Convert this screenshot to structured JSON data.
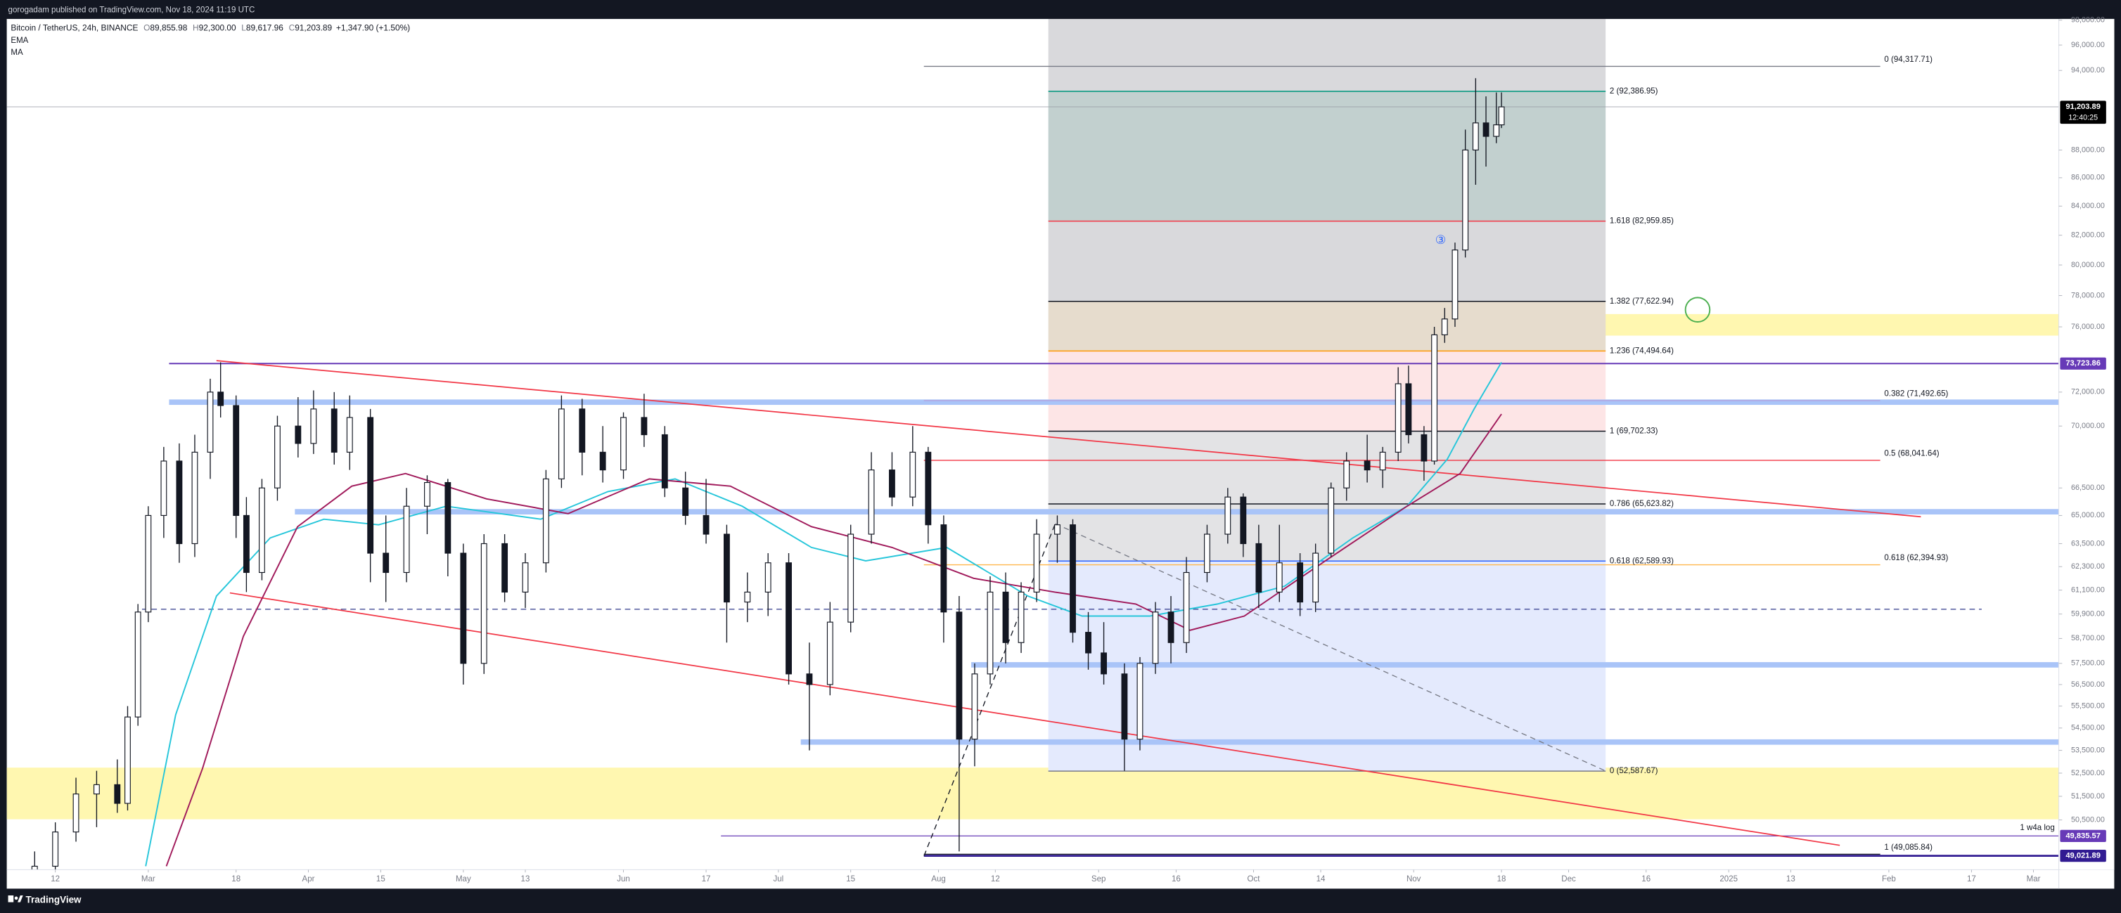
{
  "chart_data": {
    "type": "candlestick",
    "publisher": "gorogadam published on TradingView.com, Nov 18, 2024 11:19 UTC",
    "brand": "TradingView",
    "title": "Bitcoin / TetherUS, 24h, BINANCE",
    "ohlc_header": [
      {
        "key": "O",
        "value": 89855.98,
        "label": "89,855.98"
      },
      {
        "key": "H",
        "value": 92300,
        "label": "92,300.00"
      },
      {
        "key": "L",
        "value": 89617.96,
        "label": "89,617.96"
      },
      {
        "key": "C",
        "value": 91203.89,
        "label": "91,203.89"
      }
    ],
    "change": {
      "value": 1347.9,
      "label": "+1,347.90 (+1.50%)"
    },
    "scale_note": "1 w4a log",
    "wave_label": "③",
    "log_y": true,
    "up_color": "#ffffff",
    "down_color": "#131722",
    "wick_color": "#131722",
    "x": [
      39,
      43,
      47,
      51,
      55,
      57,
      59,
      61,
      64,
      67,
      70,
      73,
      75,
      78,
      80,
      83,
      86,
      90,
      93,
      97,
      100,
      104,
      107,
      111,
      115,
      119,
      122,
      126,
      130,
      134,
      138,
      141,
      145,
      149,
      153,
      157,
      161,
      165,
      169,
      173,
      177,
      181,
      185,
      189,
      193,
      197,
      201,
      205,
      209,
      212,
      215,
      218,
      221,
      224,
      227,
      230,
      233,
      237,
      240,
      243,
      246,
      250,
      253,
      256,
      259,
      262,
      266,
      270,
      273,
      276,
      280,
      284,
      287,
      290,
      293,
      297,
      300,
      303,
      305,
      308,
      310,
      312,
      314,
      316,
      318,
      320,
      322,
      323
    ],
    "open": [
      47500,
      48600,
      50000,
      51600,
      52000,
      51200,
      55000,
      60000,
      65000,
      68000,
      63500,
      68500,
      72000,
      71200,
      65000,
      62000,
      66500,
      70000,
      69000,
      71000,
      68500,
      70500,
      63000,
      62000,
      65500,
      66800,
      63000,
      57500,
      63500,
      61000,
      62500,
      67000,
      71000,
      68500,
      67500,
      70500,
      69500,
      66500,
      65000,
      64000,
      60500,
      61000,
      62500,
      57000,
      56500,
      59500,
      64000,
      67500,
      66000,
      68500,
      64500,
      60000,
      54000,
      57000,
      61000,
      58500,
      61000,
      64000,
      64500,
      59000,
      58000,
      57000,
      54000,
      57500,
      60000,
      58500,
      62000,
      64000,
      66000,
      63500,
      61000,
      62500,
      60500,
      63000,
      66500,
      68000,
      67500,
      68500,
      72500,
      69500,
      68000,
      75500,
      76500,
      81000,
      88000,
      90000,
      89000,
      89855.98
    ],
    "high": [
      49200,
      50400,
      52300,
      52600,
      53100,
      55500,
      60400,
      65500,
      68800,
      69000,
      69500,
      72800,
      73800,
      71800,
      66000,
      67000,
      70600,
      71700,
      72100,
      72000,
      71800,
      71000,
      65000,
      66500,
      67200,
      67000,
      63500,
      64000,
      64000,
      63000,
      67500,
      71800,
      71600,
      70000,
      70800,
      71900,
      70000,
      67400,
      67000,
      64500,
      62000,
      63000,
      63000,
      58500,
      60500,
      64500,
      68500,
      68500,
      70000,
      68800,
      65000,
      60800,
      57500,
      61800,
      62000,
      61500,
      64800,
      65000,
      64800,
      60000,
      59500,
      57500,
      57800,
      60500,
      60800,
      62800,
      64500,
      66500,
      66200,
      64500,
      64500,
      63000,
      63500,
      66800,
      68500,
      69500,
      68800,
      73500,
      73600,
      70000,
      76000,
      77200,
      81500,
      89500,
      93400,
      92000,
      92300,
      92300
    ],
    "low": [
      47000,
      48200,
      49600,
      50200,
      50800,
      50900,
      54600,
      59500,
      63800,
      62500,
      62800,
      67000,
      70500,
      63800,
      61000,
      61600,
      65800,
      68200,
      68400,
      67800,
      67500,
      61500,
      60500,
      61500,
      64000,
      61800,
      56500,
      57000,
      60500,
      60200,
      62000,
      66500,
      67200,
      66800,
      67000,
      68800,
      66000,
      64500,
      63500,
      58500,
      59500,
      59800,
      56500,
      53500,
      56000,
      59000,
      63500,
      65500,
      65500,
      63500,
      58500,
      49200,
      52800,
      56500,
      57500,
      58000,
      60500,
      62500,
      58500,
      57200,
      56500,
      52600,
      53500,
      57000,
      57500,
      58000,
      61500,
      63500,
      62800,
      60200,
      60500,
      59800,
      60000,
      62800,
      65800,
      66800,
      66500,
      68000,
      69000,
      66900,
      67800,
      75000,
      76000,
      80500,
      85500,
      86800,
      88500,
      89617.96
    ],
    "close": [
      48600,
      50000,
      51600,
      52000,
      51200,
      55000,
      60000,
      65000,
      68000,
      63500,
      68500,
      72000,
      71200,
      65000,
      62000,
      66500,
      70000,
      69000,
      71000,
      68500,
      70500,
      63000,
      62000,
      65500,
      66800,
      63000,
      57500,
      63500,
      61000,
      62500,
      67000,
      71000,
      68500,
      67500,
      70500,
      69500,
      66500,
      65000,
      64000,
      60500,
      61000,
      62500,
      57000,
      56500,
      59500,
      64000,
      67500,
      66000,
      68500,
      64500,
      60000,
      54000,
      57000,
      61000,
      58500,
      61000,
      64000,
      64500,
      59000,
      58000,
      57000,
      54000,
      57500,
      60000,
      58500,
      62000,
      64000,
      66000,
      63500,
      61000,
      62500,
      60500,
      63000,
      66500,
      68000,
      67500,
      68500,
      72500,
      69500,
      68000,
      75500,
      76500,
      81000,
      88000,
      90000,
      89000,
      89855.98,
      91203.89
    ],
    "lines": [
      {
        "name": "EMA",
        "color": "#26c6da",
        "x": [
          60.5,
          66.3,
          74.2,
          84.6,
          95,
          105.6,
          118.7,
          137,
          150,
          163,
          176,
          189.4,
          199.9,
          215.6,
          231.3,
          241.8,
          254.9,
          268,
          281,
          294.2,
          304.7,
          312.5,
          317.7,
          323
        ],
        "values": [
          48600,
          55100,
          60800,
          63800,
          64800,
          64500,
          65500,
          64800,
          66300,
          67000,
          65500,
          63300,
          62600,
          63300,
          60800,
          59800,
          59800,
          60400,
          61300,
          63800,
          65500,
          68100,
          71000,
          73800
        ]
      },
      {
        "name": "MA",
        "color": "#a0195a",
        "x": [
          64.5,
          71.5,
          79.4,
          89.9,
          100.4,
          110.8,
          126.5,
          142.3,
          158,
          173.7,
          189.4,
          205,
          220.8,
          236.5,
          252.2,
          262.7,
          273.2,
          288.9,
          304.7,
          315,
          323
        ],
        "values": [
          48600,
          52700,
          58800,
          64400,
          66600,
          67300,
          65900,
          65100,
          67000,
          66600,
          64400,
          63300,
          61700,
          61000,
          60400,
          59100,
          59800,
          62600,
          65500,
          67300,
          70700
        ]
      }
    ],
    "zones": [
      {
        "low": 50530,
        "high": 52740,
        "color": "#fff7b0"
      },
      {
        "low": 75450,
        "high": 76810,
        "color": "#fff7b0"
      }
    ],
    "levels": [
      {
        "value": 71400,
        "color": "#a9c4f8",
        "style": "band"
      },
      {
        "value": 65200,
        "color": "#a9c4f8",
        "style": "band"
      },
      {
        "value": 57430,
        "color": "#a9c4f8",
        "style": "band"
      },
      {
        "value": 53870,
        "color": "#a9c4f8",
        "style": "band"
      },
      {
        "value": 60140,
        "color": "#1a237e",
        "style": "dashed"
      }
    ],
    "trendlines": [
      {
        "color": "#f23645",
        "dash": false,
        "x": [
          74.2,
          404.2
        ],
        "values": [
          73900,
          64930
        ]
      },
      {
        "color": "#f23645",
        "dash": false,
        "x": [
          76.8,
          388.5
        ],
        "values": [
          60960,
          49450
        ]
      },
      {
        "color": "#131722",
        "dash": true,
        "x": [
          211.2,
          236.6
        ],
        "values": [
          49020,
          64560
        ]
      },
      {
        "color": "#787b86",
        "dash": true,
        "x": [
          236.6,
          343.2
        ],
        "values": [
          64560,
          52590
        ]
      }
    ],
    "fib_extension": {
      "color": "#d9d9dc",
      "levels": [
        {
          "label": "2 (92,386.95)",
          "value": 92386.95,
          "color": "#089981",
          "fill": "#c2d0cf"
        },
        {
          "label": "1.618 (82,959.85)",
          "value": 82959.85,
          "color": "#f23645",
          "fill": "#d9d9dc"
        },
        {
          "label": "1.382 (77,622.94)",
          "value": 77622.94,
          "color": "#131722",
          "fill": "#e6dccd"
        },
        {
          "label": "1.236 (74,494.64)",
          "value": 74494.64,
          "color": "#ff9800",
          "fill": "#fde5e6"
        },
        {
          "label": "1 (69,702.33)",
          "value": 69702.33,
          "color": "#131722",
          "fill": "#e3e3e5"
        },
        {
          "label": "0.786 (65,623.82)",
          "value": 65623.82,
          "color": "#131722",
          "fill": "#e3e3e5"
        },
        {
          "label": "0.618 (62,589.93)",
          "value": 62589.93,
          "color": "#2962ff",
          "fill": "#e4eafd"
        },
        {
          "label": "0 (52,587.67)",
          "value": 52587.67,
          "color": "#787b86"
        }
      ]
    },
    "fib_retracement": [
      {
        "label": "0 (94,317.71)",
        "value": 94317.71,
        "color": "#787b86"
      },
      {
        "label": "0.382 (71,492.65)",
        "value": 71492.65,
        "color": "#b39ddb"
      },
      {
        "label": "0.5 (68,041.64)",
        "value": 68041.64,
        "color": "#f23645"
      },
      {
        "label": "0.618 (62,394.93)",
        "value": 62394.93,
        "color": "#ffb74d"
      },
      {
        "label": "1 (49,085.84)",
        "value": 49085.84,
        "color": "#131722"
      }
    ],
    "price_labels": [
      {
        "value": 91203.89,
        "label": "91,203.89",
        "color": "#000000",
        "countdown": "12:40:25"
      },
      {
        "value": 73723.86,
        "label": "73,723.86",
        "color": "#673ab7"
      },
      {
        "value": 49835.57,
        "label": "49,835.57",
        "color": "#673ab7"
      },
      {
        "value": 49021.89,
        "label": "49,021.89",
        "color": "#311b92"
      }
    ],
    "xlim": [
      33.6,
      430.9
    ],
    "xticks": [
      {
        "value": 43,
        "label": "12"
      },
      {
        "value": 61,
        "label": "Mar"
      },
      {
        "value": 78,
        "label": "18"
      },
      {
        "value": 92,
        "label": "Apr"
      },
      {
        "value": 106,
        "label": "15"
      },
      {
        "value": 122,
        "label": "May"
      },
      {
        "value": 134,
        "label": "13"
      },
      {
        "value": 153,
        "label": "Jun"
      },
      {
        "value": 169,
        "label": "17"
      },
      {
        "value": 183,
        "label": "Jul"
      },
      {
        "value": 197,
        "label": "15"
      },
      {
        "value": 214,
        "label": "Aug"
      },
      {
        "value": 225,
        "label": "12"
      },
      {
        "value": 245,
        "label": "Sep"
      },
      {
        "value": 260,
        "label": "16"
      },
      {
        "value": 275,
        "label": "Oct"
      },
      {
        "value": 288,
        "label": "14"
      },
      {
        "value": 306,
        "label": "Nov"
      },
      {
        "value": 323,
        "label": "18"
      },
      {
        "value": 336,
        "label": "Dec"
      },
      {
        "value": 351,
        "label": "16"
      },
      {
        "value": 367,
        "label": "2025"
      },
      {
        "value": 379,
        "label": "13"
      },
      {
        "value": 398,
        "label": "Feb"
      },
      {
        "value": 414,
        "label": "17"
      },
      {
        "value": 426,
        "label": "Mar"
      }
    ],
    "ylim": [
      48460,
      98100
    ],
    "yticks": [
      {
        "value": 98000,
        "label": "98,000.00"
      },
      {
        "value": 96000,
        "label": "96,000.00"
      },
      {
        "value": 94000,
        "label": "94,000.00"
      },
      {
        "value": 88000,
        "label": "88,000.00"
      },
      {
        "value": 86000,
        "label": "86,000.00"
      },
      {
        "value": 84000,
        "label": "84,000.00"
      },
      {
        "value": 82000,
        "label": "82,000.00"
      },
      {
        "value": 80000,
        "label": "80,000.00"
      },
      {
        "value": 78000,
        "label": "78,000.00"
      },
      {
        "value": 76000,
        "label": "76,000.00"
      },
      {
        "value": 72000,
        "label": "72,000.00"
      },
      {
        "value": 70000,
        "label": "70,000.00"
      },
      {
        "value": 66500,
        "label": "66,500.00"
      },
      {
        "value": 65000,
        "label": "65,000.00"
      },
      {
        "value": 63500,
        "label": "63,500.00"
      },
      {
        "value": 62300,
        "label": "62,300.00"
      },
      {
        "value": 61100,
        "label": "61,100.00"
      },
      {
        "value": 59900,
        "label": "59,900.00"
      },
      {
        "value": 58700,
        "label": "58,700.00"
      },
      {
        "value": 57500,
        "label": "57,500.00"
      },
      {
        "value": 56500,
        "label": "56,500.00"
      },
      {
        "value": 55500,
        "label": "55,500.00"
      },
      {
        "value": 54500,
        "label": "54,500.00"
      },
      {
        "value": 53500,
        "label": "53,500.00"
      },
      {
        "value": 52500,
        "label": "52,500.00"
      },
      {
        "value": 51500,
        "label": "51,500.00"
      },
      {
        "value": 50500,
        "label": "50,500.00"
      }
    ]
  }
}
